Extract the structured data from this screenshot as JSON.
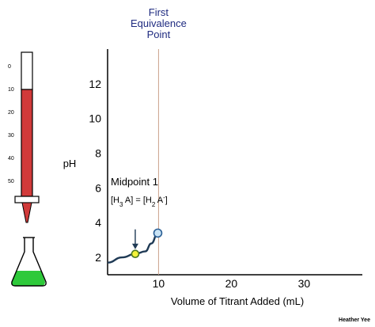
{
  "chart_data": {
    "type": "line",
    "xlabel": "Volume of Titrant Added (mL)",
    "ylabel": "pH",
    "xlim": [
      3,
      38
    ],
    "ylim": [
      1,
      14
    ],
    "x_ticks": [
      10,
      20,
      30
    ],
    "y_ticks": [
      2,
      4,
      6,
      8,
      10,
      12
    ],
    "grid": false,
    "series": [
      {
        "points": [
          {
            "x": 3,
            "y": 1.7
          },
          {
            "x": 5,
            "y": 2.0
          },
          {
            "x": 6.8,
            "y": 2.2
          },
          {
            "x": 8.2,
            "y": 2.35
          },
          {
            "x": 9.0,
            "y": 2.8
          },
          {
            "x": 9.9,
            "y": 3.4
          }
        ],
        "color": "#1f3a55"
      }
    ],
    "markers": [
      {
        "x": 6.8,
        "y": 2.2,
        "fill": "#f4f23a",
        "stroke": "#4e7a1f"
      },
      {
        "x": 9.9,
        "y": 3.4,
        "fill": "#c9e3f5",
        "stroke": "#2b5f95"
      }
    ],
    "vertical_line": {
      "x": 10,
      "color": "#caa08a",
      "label": [
        "First",
        "Equivalence",
        "Point"
      ],
      "label_color": "#1f2b80"
    },
    "annotation": {
      "title": "Midpoint 1",
      "formula_html": "[H<tspan baseline-shift=\"sub\" font-size=\"8\">3</tspan> A] = [H<tspan baseline-shift=\"sub\" font-size=\"8\">2</tspan> A<tspan baseline-shift=\"super\" font-size=\"8\">-</tspan>]",
      "arrow_color": "#1f3a55"
    },
    "credit": "Heather Yee"
  },
  "burette": {
    "scale_labels": [
      "0",
      "10",
      "20",
      "30",
      "40",
      "50"
    ],
    "liquid_color": "#d13a3a",
    "flask_liquid_color": "#2ec93a"
  }
}
